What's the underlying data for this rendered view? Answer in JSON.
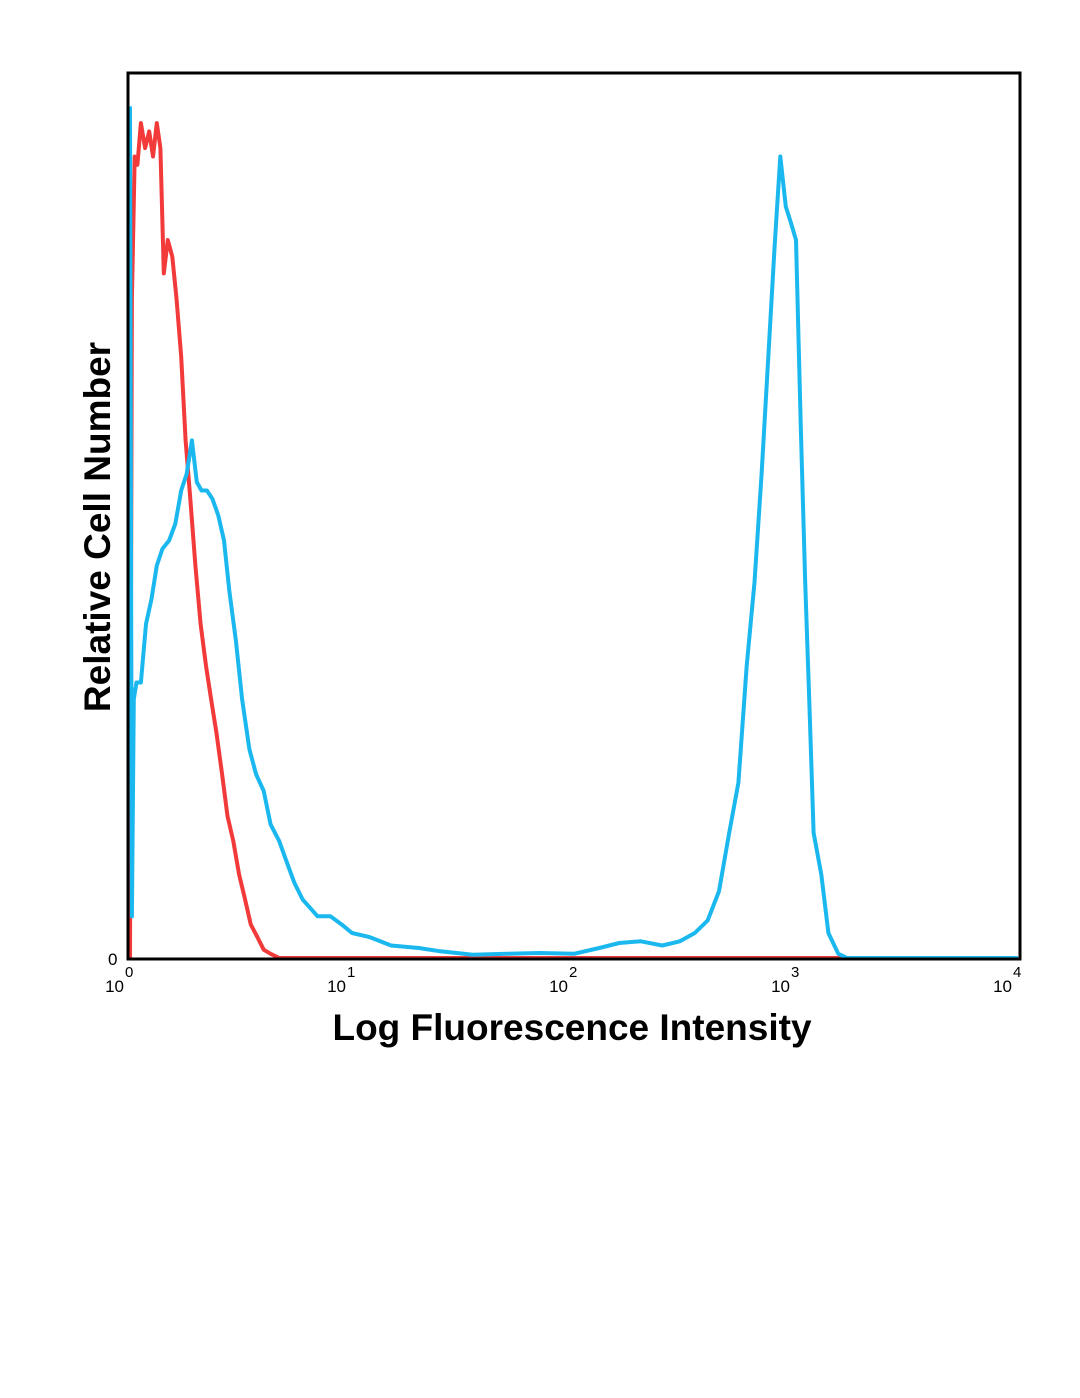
{
  "chart_data": {
    "type": "line",
    "title": "",
    "xlabel": "Log Fluorescence Intensity",
    "ylabel": "Relative Cell Number",
    "x_scale": "log",
    "xlim": [
      1,
      10000
    ],
    "ylim": [
      0,
      1.06
    ],
    "grid": false,
    "legend": "none",
    "x_ticks": [
      {
        "value": 1,
        "base": "10",
        "exp": "0"
      },
      {
        "value": 10,
        "base": "10",
        "exp": "1"
      },
      {
        "value": 100,
        "base": "10",
        "exp": "2"
      },
      {
        "value": 1000,
        "base": "10",
        "exp": "3"
      },
      {
        "value": 10000,
        "base": "10",
        "exp": "4"
      }
    ],
    "y_ticks": [
      {
        "value": 0,
        "label": "0"
      }
    ],
    "series": [
      {
        "color": "#f23a3a",
        "points": [
          [
            1.0,
            0.0
          ],
          [
            1.02,
            0.79
          ],
          [
            1.05,
            0.96
          ],
          [
            1.08,
            0.95
          ],
          [
            1.12,
            1.0
          ],
          [
            1.17,
            0.97
          ],
          [
            1.22,
            0.99
          ],
          [
            1.27,
            0.96
          ],
          [
            1.32,
            1.0
          ],
          [
            1.37,
            0.97
          ],
          [
            1.42,
            0.82
          ],
          [
            1.48,
            0.86
          ],
          [
            1.55,
            0.84
          ],
          [
            1.62,
            0.79
          ],
          [
            1.7,
            0.72
          ],
          [
            1.78,
            0.62
          ],
          [
            1.87,
            0.55
          ],
          [
            1.97,
            0.47
          ],
          [
            2.08,
            0.4
          ],
          [
            2.2,
            0.35
          ],
          [
            2.32,
            0.31
          ],
          [
            2.45,
            0.27
          ],
          [
            2.6,
            0.22
          ],
          [
            2.75,
            0.17
          ],
          [
            2.92,
            0.14
          ],
          [
            3.1,
            0.1
          ],
          [
            3.3,
            0.07
          ],
          [
            3.5,
            0.04
          ],
          [
            3.75,
            0.025
          ],
          [
            4.0,
            0.01
          ],
          [
            4.3,
            0.005
          ],
          [
            4.7,
            0.0
          ],
          [
            6.0,
            0.0
          ],
          [
            10.0,
            0.0
          ],
          [
            100.0,
            0.0
          ],
          [
            1000.0,
            0.0
          ],
          [
            10000.0,
            0.0
          ]
        ]
      },
      {
        "color": "#1ab8ee",
        "points": [
          [
            1.0,
            1.02
          ],
          [
            1.02,
            0.05
          ],
          [
            1.04,
            0.31
          ],
          [
            1.07,
            0.33
          ],
          [
            1.12,
            0.33
          ],
          [
            1.18,
            0.4
          ],
          [
            1.25,
            0.43
          ],
          [
            1.32,
            0.47
          ],
          [
            1.4,
            0.49
          ],
          [
            1.5,
            0.5
          ],
          [
            1.6,
            0.52
          ],
          [
            1.7,
            0.56
          ],
          [
            1.8,
            0.58
          ],
          [
            1.9,
            0.62
          ],
          [
            2.0,
            0.57
          ],
          [
            2.1,
            0.56
          ],
          [
            2.22,
            0.56
          ],
          [
            2.35,
            0.55
          ],
          [
            2.5,
            0.53
          ],
          [
            2.65,
            0.5
          ],
          [
            2.8,
            0.44
          ],
          [
            3.0,
            0.38
          ],
          [
            3.2,
            0.31
          ],
          [
            3.45,
            0.25
          ],
          [
            3.7,
            0.22
          ],
          [
            4.0,
            0.2
          ],
          [
            4.3,
            0.16
          ],
          [
            4.7,
            0.14
          ],
          [
            5.0,
            0.12
          ],
          [
            5.5,
            0.09
          ],
          [
            6.0,
            0.07
          ],
          [
            7.0,
            0.05
          ],
          [
            8.0,
            0.05
          ],
          [
            9.0,
            0.04
          ],
          [
            10.0,
            0.03
          ],
          [
            12.0,
            0.025
          ],
          [
            15.0,
            0.015
          ],
          [
            20.0,
            0.012
          ],
          [
            25.0,
            0.008
          ],
          [
            35.0,
            0.004
          ],
          [
            50.0,
            0.005
          ],
          [
            70.0,
            0.006
          ],
          [
            100.0,
            0.005
          ],
          [
            130.0,
            0.012
          ],
          [
            160.0,
            0.018
          ],
          [
            200.0,
            0.02
          ],
          [
            250.0,
            0.015
          ],
          [
            300.0,
            0.02
          ],
          [
            350.0,
            0.03
          ],
          [
            400.0,
            0.045
          ],
          [
            450.0,
            0.08
          ],
          [
            500.0,
            0.15
          ],
          [
            550.0,
            0.21
          ],
          [
            600.0,
            0.35
          ],
          [
            650.0,
            0.45
          ],
          [
            700.0,
            0.58
          ],
          [
            750.0,
            0.72
          ],
          [
            800.0,
            0.85
          ],
          [
            850.0,
            0.96
          ],
          [
            900.0,
            0.9
          ],
          [
            950.0,
            0.88
          ],
          [
            1000.0,
            0.86
          ],
          [
            1050.0,
            0.64
          ],
          [
            1100.0,
            0.45
          ],
          [
            1150.0,
            0.3
          ],
          [
            1200.0,
            0.15
          ],
          [
            1300.0,
            0.1
          ],
          [
            1400.0,
            0.03
          ],
          [
            1550.0,
            0.005
          ],
          [
            1700.0,
            0.0
          ],
          [
            2000.0,
            0.0
          ],
          [
            5000.0,
            0.0
          ],
          [
            10000.0,
            0.0
          ]
        ]
      }
    ]
  }
}
